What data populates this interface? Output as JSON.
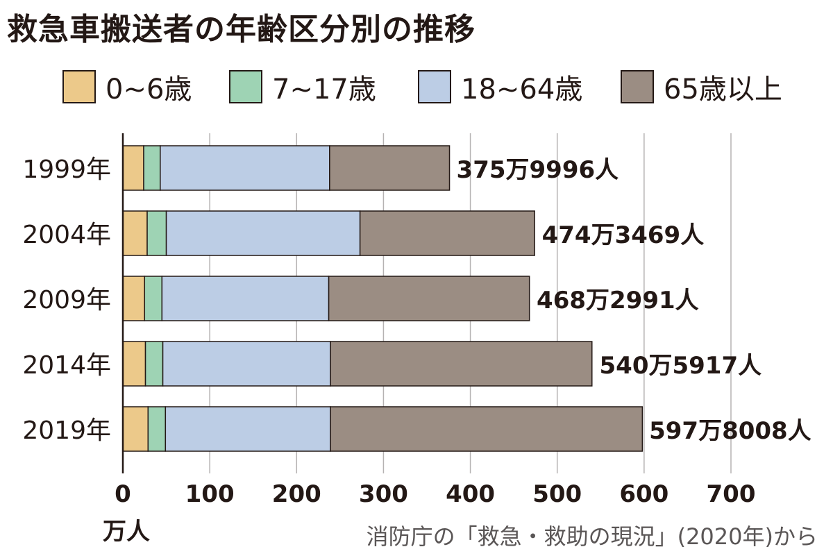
{
  "title": "救急車搬送者の年齢区分別の推移",
  "source": "消防庁の「救急・救助の現況」(2020年)から",
  "unit_label": "万人",
  "colors": {
    "age_0_6": "#ecc98a",
    "age_7_17": "#9ed3b4",
    "age_18_64": "#bccde5",
    "age_65_plus": "#9b8d83",
    "grid": "#b5b2b2",
    "text": "#231815"
  },
  "chart_data": {
    "type": "bar",
    "orientation": "horizontal",
    "stacked": true,
    "categories": [
      "1999年",
      "2004年",
      "2009年",
      "2014年",
      "2019年"
    ],
    "series": [
      {
        "name": "0~6歳",
        "values": [
          24,
          28,
          25,
          26,
          29
        ]
      },
      {
        "name": "7~17歳",
        "values": [
          19,
          22,
          20,
          20,
          20
        ]
      },
      {
        "name": "18~64歳",
        "values": [
          195,
          223,
          192,
          193,
          190
        ]
      },
      {
        "name": "65歳以上",
        "values": [
          138,
          201,
          231,
          301,
          359
        ]
      }
    ],
    "totals": [
      375.9996,
      474.3469,
      468.2991,
      540.5917,
      597.8008
    ],
    "total_labels": [
      "375万9996人",
      "474万3469人",
      "468万2991人",
      "540万5917人",
      "597万8008人"
    ],
    "xlim": [
      0,
      700
    ],
    "xticks": [
      0,
      100,
      200,
      300,
      400,
      500,
      600,
      700
    ],
    "xlabel": "万人",
    "grid": true,
    "legend": "top"
  }
}
